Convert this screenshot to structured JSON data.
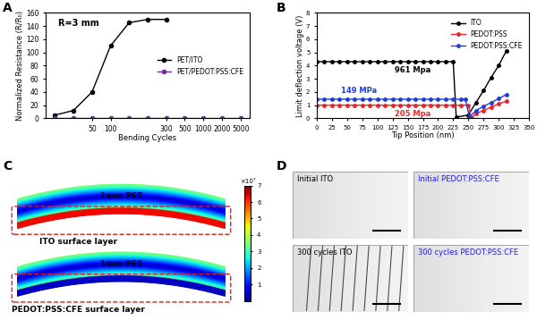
{
  "chart_data": [
    {
      "type": "line",
      "title": "A",
      "annotation": "R=3 mm",
      "x_label": "Bending Cycles",
      "y_label": "Normalized Resistance (R/R₀)",
      "categories": [
        null,
        null,
        "50",
        "100",
        null,
        null,
        "300",
        "500",
        "1000",
        "2000",
        "5000"
      ],
      "series": [
        {
          "name": "PET/ITO",
          "color": "#000000",
          "marker": "circle",
          "values": [
            5,
            12,
            40,
            110,
            145,
            150,
            150,
            null,
            null,
            null,
            null
          ]
        },
        {
          "name": "PET/PEDOT:PSS:CFE",
          "color": "#7030a0",
          "marker": "circle",
          "values": [
            1,
            1,
            1,
            1,
            1,
            1,
            1,
            1,
            1,
            1,
            1
          ]
        }
      ],
      "ylim": [
        0,
        160
      ],
      "yticks": [
        0,
        20,
        40,
        60,
        80,
        100,
        120,
        140,
        160
      ],
      "legend": "center right"
    },
    {
      "type": "line",
      "title": "B",
      "x_label": "Tip Position (nm)",
      "y_label": "Limit deflection voltage (V)",
      "series": [
        {
          "name": "ITO",
          "color": "#000000",
          "marker": "circle",
          "annotation": "961 Mpa",
          "x": [
            0,
            12.5,
            25,
            37.5,
            50,
            62.5,
            75,
            87.5,
            100,
            112.5,
            125,
            137.5,
            150,
            162.5,
            175,
            187.5,
            200,
            212.5,
            225,
            230,
            250,
            262.5,
            275,
            287.5,
            300,
            312.5
          ],
          "values": [
            4.3,
            4.3,
            4.3,
            4.3,
            4.3,
            4.3,
            4.3,
            4.3,
            4.3,
            4.3,
            4.3,
            4.3,
            4.3,
            4.3,
            4.3,
            4.3,
            4.3,
            4.3,
            4.3,
            0.1,
            0.25,
            1.2,
            2.1,
            3.1,
            4.0,
            5.1
          ]
        },
        {
          "name": "PEDOT:PSS",
          "color": "#e8262a",
          "marker": "circle",
          "annotation": "205 Mpa",
          "x": [
            0,
            12.5,
            25,
            37.5,
            50,
            62.5,
            75,
            87.5,
            100,
            112.5,
            125,
            137.5,
            150,
            162.5,
            175,
            187.5,
            200,
            212.5,
            225,
            237.5,
            250,
            255,
            262.5,
            275,
            287.5,
            300,
            312.5
          ],
          "values": [
            1.0,
            1.0,
            1.0,
            1.0,
            1.0,
            1.0,
            1.0,
            1.0,
            1.0,
            1.0,
            1.0,
            1.0,
            1.0,
            1.0,
            1.0,
            1.0,
            1.0,
            1.0,
            1.0,
            1.0,
            1.0,
            0.05,
            0.35,
            0.6,
            0.85,
            1.1,
            1.3
          ]
        },
        {
          "name": "PEDOT:PSS:CFE",
          "color": "#1f3fd8",
          "marker": "circle",
          "annotation": "149 MPa",
          "x": [
            0,
            12.5,
            25,
            37.5,
            50,
            62.5,
            75,
            87.5,
            100,
            112.5,
            125,
            137.5,
            150,
            162.5,
            175,
            187.5,
            200,
            212.5,
            225,
            237.5,
            245,
            252,
            262.5,
            275,
            287.5,
            300,
            312.5
          ],
          "values": [
            1.45,
            1.45,
            1.45,
            1.45,
            1.45,
            1.45,
            1.45,
            1.45,
            1.45,
            1.45,
            1.45,
            1.45,
            1.45,
            1.45,
            1.45,
            1.45,
            1.45,
            1.45,
            1.45,
            1.45,
            1.45,
            0.1,
            0.6,
            0.9,
            1.2,
            1.5,
            1.8
          ]
        }
      ],
      "xlim": [
        0,
        350
      ],
      "xticks": [
        0,
        25,
        50,
        75,
        100,
        125,
        150,
        175,
        200,
        225,
        250,
        275,
        300,
        325,
        350
      ],
      "ylim": [
        0,
        8
      ],
      "yticks": [
        0,
        1,
        2,
        3,
        4,
        5,
        6,
        7,
        8
      ],
      "legend": "upper right"
    }
  ],
  "panel_C": {
    "label": "C",
    "beams": [
      {
        "label": "1mm PET",
        "layer": "ITO surface layer"
      },
      {
        "label": "1mm PET",
        "layer": "PEDOT:PSS:CFE surface layer"
      }
    ],
    "colorbar": {
      "range": [
        0,
        7
      ],
      "ticks": [
        1,
        2,
        3,
        4,
        5,
        6,
        7
      ],
      "label": "×10⁷"
    }
  },
  "panel_D": {
    "label": "D",
    "images": [
      {
        "caption": "Initial ITO",
        "color": "#000000"
      },
      {
        "caption": "Initial PEDOT:PSS:CFE",
        "color": "#1f1fd0"
      },
      {
        "caption": "300 cycles ITO",
        "color": "#000000"
      },
      {
        "caption": "300 cycles PEDOT:PSS:CFE",
        "color": "#1f1fd0"
      }
    ]
  }
}
